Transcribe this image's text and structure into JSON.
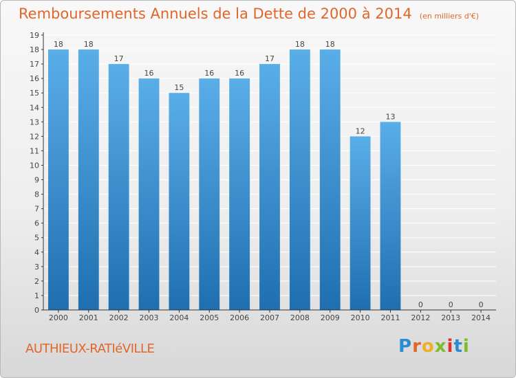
{
  "header": {
    "title": "Remboursements Annuels de la Dette de 2000 à 2014",
    "subtitle": "(en milliers d'€)"
  },
  "footer": {
    "commune": "AUTHIEUX-RATIéVILLE",
    "logo": "Proxiti"
  },
  "colors": {
    "title": "#e0662a",
    "bar_light": "#5aaee8",
    "bar_dark": "#1f6fb0",
    "grid": "#ffffff",
    "axis": "#333333",
    "text": "#444444"
  },
  "chart_data": {
    "type": "bar",
    "title": "Remboursements Annuels de la Dette de 2000 à 2014",
    "subtitle": "(en milliers d'€)",
    "categories": [
      "2000",
      "2001",
      "2002",
      "2003",
      "2004",
      "2005",
      "2006",
      "2007",
      "2008",
      "2009",
      "2010",
      "2011",
      "2012",
      "2013",
      "2014"
    ],
    "values": [
      18,
      18,
      17,
      16,
      15,
      16,
      16,
      17,
      18,
      18,
      12,
      13,
      0,
      0,
      0
    ],
    "data_labels": [
      "18",
      "18",
      "17",
      "16",
      "15",
      "16",
      "16",
      "17",
      "18",
      "18",
      "12",
      "13",
      "0",
      "0",
      "0"
    ],
    "ylim": [
      0,
      19
    ],
    "yticks": [
      "0",
      "1",
      "2",
      "3",
      "4",
      "5",
      "6",
      "7",
      "8",
      "9",
      "10",
      "11",
      "12",
      "13",
      "14",
      "15",
      "16",
      "17",
      "18",
      "19"
    ],
    "grid": true,
    "xlabel": "",
    "ylabel": ""
  }
}
